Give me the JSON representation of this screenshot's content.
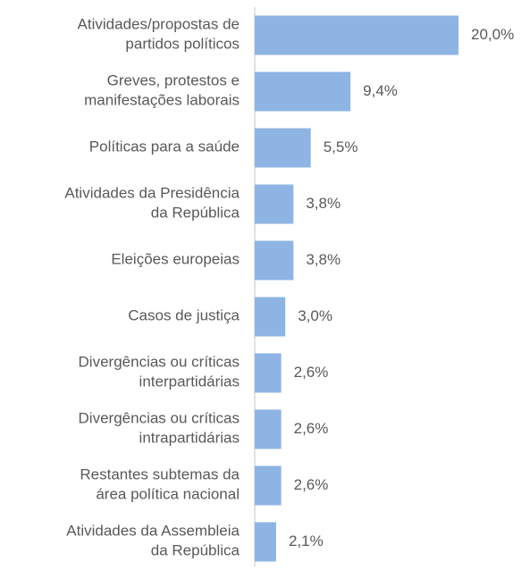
{
  "chart_data": {
    "type": "barh",
    "categories": [
      "Atividades/propostas de\npartidos políticos",
      "Greves, protestos e\nmanifestações laborais",
      "Políticas para a saúde",
      "Atividades da Presidência\nda República",
      "Eleições europeias",
      "Casos de justiça",
      "Divergências ou críticas\ninterpartidárias",
      "Divergências ou críticas\nintrapartidárias",
      "Restantes subtemas da\nárea política nacional",
      "Atividades da Assembleia\nda República"
    ],
    "values": [
      20.0,
      9.4,
      5.5,
      3.8,
      3.8,
      3.0,
      2.6,
      2.6,
      2.6,
      2.1
    ],
    "value_labels": [
      "20,0%",
      "9,4%",
      "5,5%",
      "3,8%",
      "3,8%",
      "3,0%",
      "2,6%",
      "2,6%",
      "2,6%",
      "2,1%"
    ],
    "color": "#8eb4e3"
  }
}
